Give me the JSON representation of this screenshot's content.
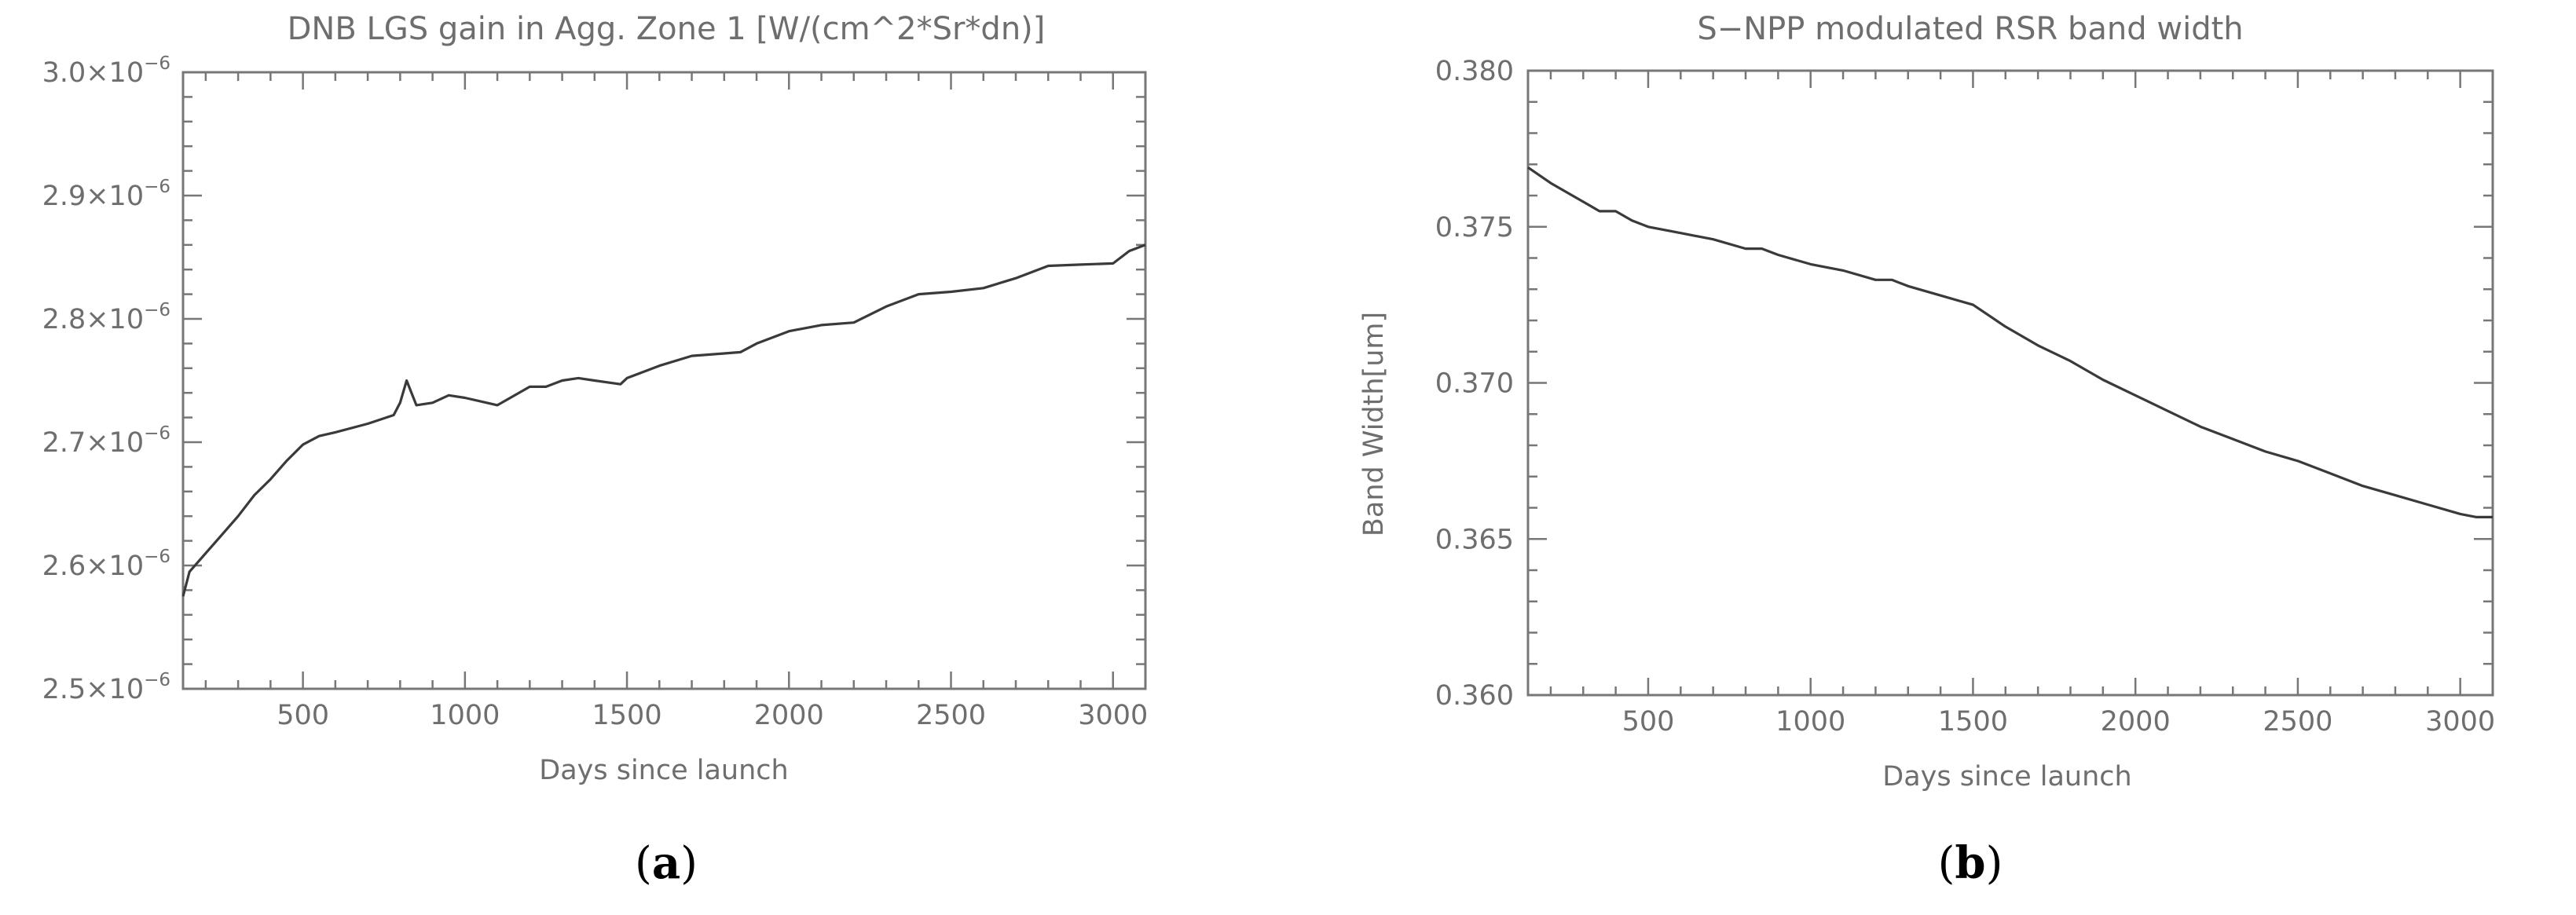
{
  "chart_data": [
    {
      "type": "line",
      "title": "DNB LGS gain in Agg. Zone 1 [W/(cm^2*Sr*dn)]",
      "xlabel": "Days since launch",
      "ylabel": "",
      "caption": "a",
      "xlim": [
        130,
        3100
      ],
      "ylim": [
        2.5e-06,
        3e-06
      ],
      "xticks": [
        500,
        1000,
        1500,
        2000,
        2500,
        3000
      ],
      "yticks": [
        {
          "value": 2.5e-06,
          "mant": "2.5×10",
          "exp": "−6"
        },
        {
          "value": 2.6e-06,
          "mant": "2.6×10",
          "exp": "−6"
        },
        {
          "value": 2.7e-06,
          "mant": "2.7×10",
          "exp": "−6"
        },
        {
          "value": 2.8e-06,
          "mant": "2.8×10",
          "exp": "−6"
        },
        {
          "value": 2.9e-06,
          "mant": "2.9×10",
          "exp": "−6"
        },
        {
          "value": 3e-06,
          "mant": "3.0×10",
          "exp": "−6"
        }
      ],
      "series": [
        {
          "x": [
            130,
            150,
            200,
            250,
            300,
            350,
            400,
            450,
            500,
            550,
            600,
            700,
            780,
            800,
            820,
            850,
            900,
            950,
            1000,
            1100,
            1200,
            1250,
            1300,
            1350,
            1400,
            1480,
            1500,
            1600,
            1700,
            1800,
            1850,
            1900,
            2000,
            2100,
            2200,
            2300,
            2400,
            2500,
            2600,
            2700,
            2800,
            2900,
            3000,
            3050,
            3100
          ],
          "y": [
            2.575e-06,
            2.595e-06,
            2.61e-06,
            2.625e-06,
            2.64e-06,
            2.657e-06,
            2.67e-06,
            2.685e-06,
            2.698e-06,
            2.705e-06,
            2.708e-06,
            2.715e-06,
            2.722e-06,
            2.732e-06,
            2.75e-06,
            2.73e-06,
            2.732e-06,
            2.738e-06,
            2.736e-06,
            2.73e-06,
            2.745e-06,
            2.745e-06,
            2.75e-06,
            2.752e-06,
            2.75e-06,
            2.747e-06,
            2.752e-06,
            2.762e-06,
            2.77e-06,
            2.772e-06,
            2.773e-06,
            2.78e-06,
            2.79e-06,
            2.795e-06,
            2.797e-06,
            2.81e-06,
            2.82e-06,
            2.822e-06,
            2.825e-06,
            2.833e-06,
            2.843e-06,
            2.844e-06,
            2.845e-06,
            2.855e-06,
            2.86e-06
          ]
        }
      ]
    },
    {
      "type": "line",
      "title": "S−NPP modulated RSR band width",
      "xlabel": "Days since launch",
      "ylabel": "Band Width[um]",
      "caption": "b",
      "xlim": [
        130,
        3100
      ],
      "ylim": [
        0.36,
        0.38
      ],
      "xticks": [
        500,
        1000,
        1500,
        2000,
        2500,
        3000
      ],
      "yticks": [
        {
          "value": 0.36,
          "label": "0.360"
        },
        {
          "value": 0.365,
          "label": "0.365"
        },
        {
          "value": 0.37,
          "label": "0.370"
        },
        {
          "value": 0.375,
          "label": "0.375"
        },
        {
          "value": 0.38,
          "label": "0.380"
        }
      ],
      "series": [
        {
          "x": [
            130,
            200,
            300,
            350,
            400,
            450,
            500,
            600,
            700,
            800,
            850,
            900,
            1000,
            1100,
            1200,
            1250,
            1300,
            1400,
            1500,
            1600,
            1700,
            1800,
            1900,
            2000,
            2100,
            2200,
            2300,
            2400,
            2500,
            2600,
            2700,
            2800,
            2900,
            3000,
            3050,
            3100
          ],
          "y": [
            0.3769,
            0.3764,
            0.3758,
            0.3755,
            0.3755,
            0.3752,
            0.375,
            0.3748,
            0.3746,
            0.3743,
            0.3743,
            0.3741,
            0.3738,
            0.3736,
            0.3733,
            0.3733,
            0.3731,
            0.3728,
            0.3725,
            0.3718,
            0.3712,
            0.3707,
            0.3701,
            0.3696,
            0.3691,
            0.3686,
            0.3682,
            0.3678,
            0.3675,
            0.3671,
            0.3667,
            0.3664,
            0.3661,
            0.3658,
            0.3657,
            0.3657
          ]
        }
      ]
    }
  ]
}
